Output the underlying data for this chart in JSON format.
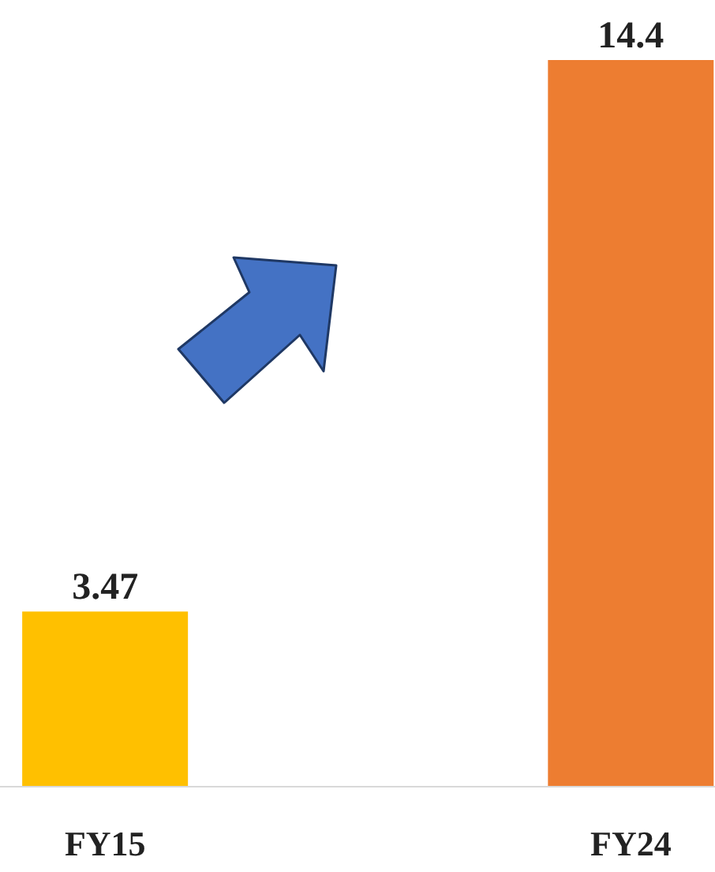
{
  "chart_data": {
    "type": "bar",
    "categories": [
      "FY15",
      "FY24"
    ],
    "values": [
      3.47,
      14.4
    ],
    "colors": [
      "#ffc000",
      "#ed7d31"
    ],
    "data_labels": true
  }
}
